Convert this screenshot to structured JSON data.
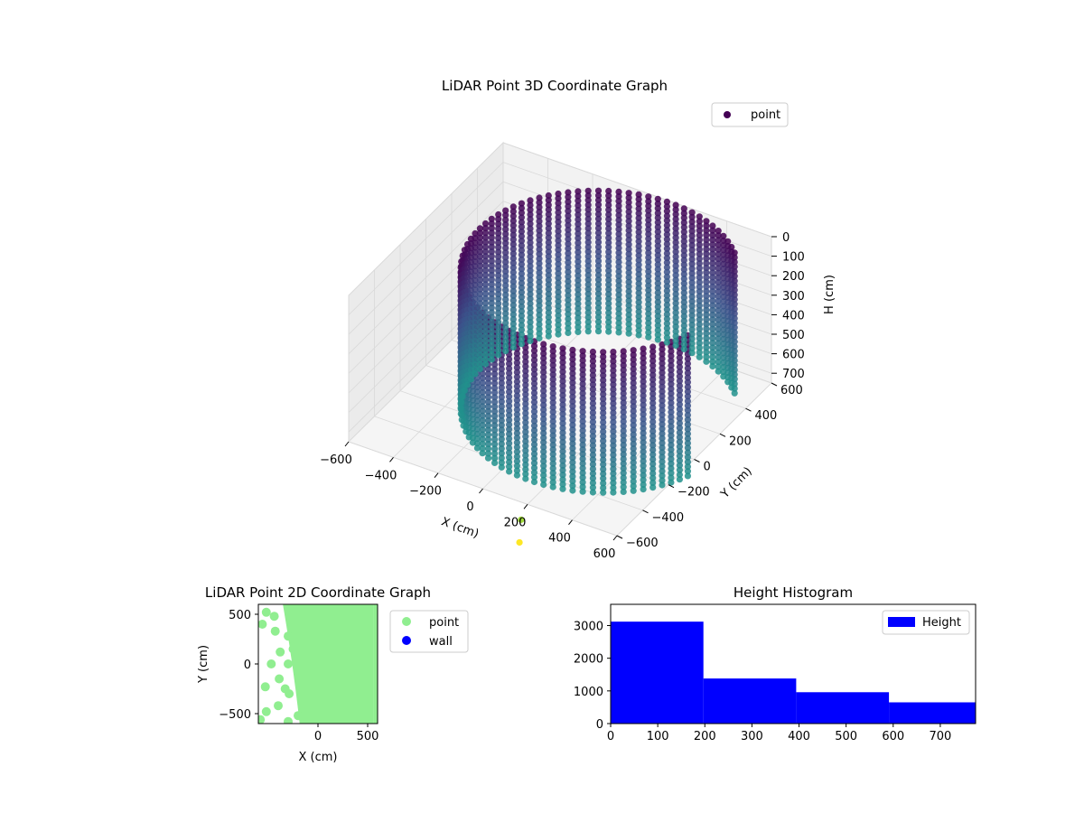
{
  "colors": {
    "background": "#ffffff",
    "pane": "#f2f2f2",
    "pane_grid": "#d9d9d9",
    "cloud_top": "#440154",
    "cloud_mid": "#3b528b",
    "cloud_low": "#21918c",
    "outlier_green": "#a0da39",
    "outlier_yellow": "#fde725",
    "point_2d": "#90ee90",
    "wall_2d": "#0000ff",
    "histogram": "#0000ff"
  },
  "chart_data": [
    {
      "type": "scatter",
      "title": "LiDAR Point 3D Coordinate Graph",
      "xlabel": "X (cm)",
      "ylabel": "Y (cm)",
      "zlabel": "H (cm)",
      "x_ticks": [
        "−600",
        "−400",
        "−200",
        "0",
        "200",
        "400",
        "600"
      ],
      "y_ticks": [
        "−600",
        "−400",
        "−200",
        "0",
        "200",
        "400",
        "600"
      ],
      "z_ticks": [
        "0",
        "100",
        "200",
        "300",
        "400",
        "500",
        "600",
        "700"
      ],
      "xlim": [
        -600,
        600
      ],
      "ylim": [
        -600,
        600
      ],
      "zlim": [
        0,
        750
      ],
      "z_inverted": true,
      "grid": true,
      "legend": {
        "position": "top-right",
        "entries": [
          "point"
        ]
      },
      "cloud": {
        "shape": "cylindrical wall",
        "center": [
          150,
          50
        ],
        "radius": 600,
        "wall_angle_range_deg": [
          45,
          340
        ],
        "height_range": [
          0,
          720
        ],
        "color_by": "height"
      },
      "outliers": [
        {
          "x": 200,
          "y": -650,
          "h": 800,
          "color": "#a0da39"
        },
        {
          "x": 210,
          "y": -680,
          "h": 900,
          "color": "#fde725"
        }
      ]
    },
    {
      "type": "scatter",
      "title": "LiDAR Point 2D Coordinate Graph",
      "xlabel": "X (cm)",
      "ylabel": "Y (cm)",
      "x_ticks": [
        "0",
        "500"
      ],
      "y_ticks": [
        "−500",
        "0",
        "500"
      ],
      "xlim": [
        -600,
        600
      ],
      "ylim": [
        -600,
        600
      ],
      "legend": {
        "position": "outside-right",
        "entries": [
          "point",
          "wall"
        ]
      },
      "series": [
        {
          "name": "point",
          "color": "#90ee90",
          "region": "disc of radius 600 centred at (0, 0), left boundary from x = -350 (top) to x = -180 (bottom)"
        },
        {
          "name": "wall",
          "color": "#0000ff",
          "points": []
        }
      ],
      "isolated_points": [
        [
          -520,
          520
        ],
        [
          -560,
          400
        ],
        [
          -440,
          480
        ],
        [
          -430,
          330
        ],
        [
          -300,
          280
        ],
        [
          -380,
          120
        ],
        [
          -250,
          150
        ],
        [
          -470,
          0
        ],
        [
          -300,
          0
        ],
        [
          -390,
          -150
        ],
        [
          -530,
          -230
        ],
        [
          -330,
          -250
        ],
        [
          -290,
          -300
        ],
        [
          -400,
          -420
        ],
        [
          -520,
          -480
        ],
        [
          -200,
          -520
        ],
        [
          -580,
          -560
        ],
        [
          -300,
          -580
        ]
      ]
    },
    {
      "type": "bar",
      "title": "Height Histogram",
      "bins": [
        [
          0,
          197
        ],
        [
          197,
          394
        ],
        [
          394,
          591
        ],
        [
          591,
          788
        ]
      ],
      "values": [
        3120,
        1380,
        960,
        650
      ],
      "x_ticks": [
        "0",
        "100",
        "200",
        "300",
        "400",
        "500",
        "600",
        "700"
      ],
      "y_ticks": [
        "0",
        "1000",
        "2000",
        "3000"
      ],
      "xlim": [
        0,
        775
      ],
      "ylim": [
        0,
        3650
      ],
      "legend": {
        "position": "top-right",
        "entries": [
          "Height"
        ]
      },
      "series": [
        {
          "name": "Height",
          "values": [
            3120,
            1380,
            960,
            650
          ]
        }
      ]
    }
  ]
}
